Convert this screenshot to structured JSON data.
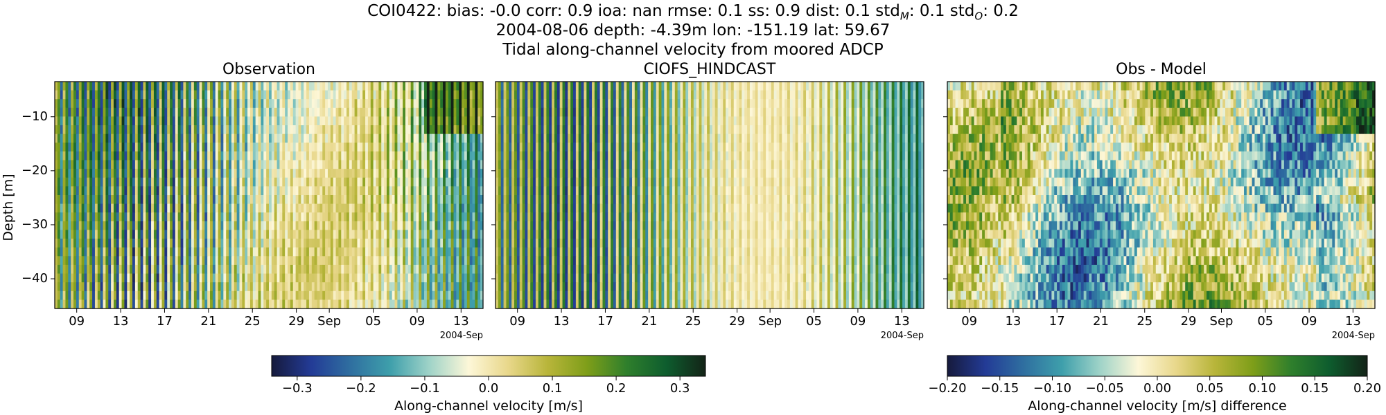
{
  "header": {
    "line1_prefix": "COI0422: bias: -0.0  corr: 0.9  ioa: nan  rmse: 0.1  ss: 0.9  dist: 0.1  std",
    "line1_sub_m": "M",
    "line1_mid": ": 0.1  std",
    "line1_sub_o": "O",
    "line1_suffix": ": 0.2",
    "line2": "2004-08-06 depth: -4.39m lon: -151.19 lat: 59.67",
    "line3": "Tidal along-channel velocity from moored ADCP"
  },
  "chart_data": [
    {
      "type": "heatmap",
      "title": "Observation",
      "ylabel": "Depth [m]",
      "x_start": "2004-08-07",
      "x_end": "2004-09-15",
      "x_ticks": [
        "09",
        "13",
        "17",
        "21",
        "25",
        "29",
        "Sep",
        "05",
        "09",
        "13"
      ],
      "x_offset_label": "2004-Sep",
      "ylim": [
        -45.5,
        -3.5
      ],
      "y_ticks": [
        -10,
        -20,
        -30,
        -40
      ],
      "y_tick_labels": [
        "−10",
        "−20",
        "−30",
        "−40"
      ],
      "colormap": "delta-like (dark navy → blue → teal → cream → olive → green → black)",
      "vmin": -0.34,
      "vmax": 0.34,
      "description": "alternating tidal velocity bands"
    },
    {
      "type": "heatmap",
      "title": "CIOFS_HINDCAST",
      "x_start": "2004-08-07",
      "x_end": "2004-09-15",
      "x_ticks": [
        "09",
        "13",
        "17",
        "21",
        "25",
        "29",
        "Sep",
        "05",
        "09",
        "13"
      ],
      "x_offset_label": "2004-Sep",
      "ylim": [
        -45.5,
        -3.5
      ],
      "y_ticks": [
        -10,
        -20,
        -30,
        -40
      ],
      "vmin": -0.34,
      "vmax": 0.34
    },
    {
      "type": "heatmap",
      "title": "Obs - Model",
      "x_start": "2004-08-07",
      "x_end": "2004-09-15",
      "x_ticks": [
        "09",
        "13",
        "17",
        "21",
        "25",
        "29",
        "Sep",
        "05",
        "09",
        "13"
      ],
      "x_offset_label": "2004-Sep",
      "ylim": [
        -45.5,
        -3.5
      ],
      "y_ticks": [
        -10,
        -20,
        -30,
        -40
      ],
      "vmin": -0.2,
      "vmax": 0.2
    }
  ],
  "colorbars": [
    {
      "label": "Along-channel velocity [m/s]",
      "ticks": [
        -0.3,
        -0.2,
        -0.1,
        0.0,
        0.1,
        0.2,
        0.3
      ],
      "tick_labels": [
        "−0.3",
        "−0.2",
        "−0.1",
        "0.0",
        "0.1",
        "0.2",
        "0.3"
      ],
      "vmin": -0.34,
      "vmax": 0.34
    },
    {
      "label": "Along-channel velocity [m/s] difference",
      "ticks": [
        -0.2,
        -0.15,
        -0.1,
        -0.05,
        0.0,
        0.05,
        0.1,
        0.15,
        0.2
      ],
      "tick_labels": [
        "−0.20",
        "−0.15",
        "−0.10",
        "−0.05",
        "0.00",
        "0.05",
        "0.10",
        "0.15",
        "0.20"
      ],
      "vmin": -0.2,
      "vmax": 0.2
    }
  ],
  "colors": {
    "cmap_stops": [
      "#161a3c",
      "#233b96",
      "#2f6fa0",
      "#3e9fab",
      "#9fd3c8",
      "#fdf7d8",
      "#e8d78a",
      "#b8b53a",
      "#7e9e19",
      "#2f7f2c",
      "#0e5d2e",
      "#132317"
    ]
  }
}
